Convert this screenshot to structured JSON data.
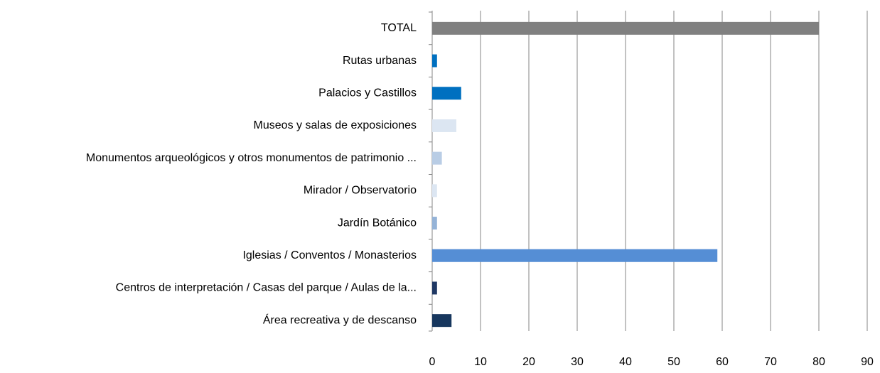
{
  "chart_data": {
    "type": "barh",
    "categories": [
      "TOTAL",
      "Rutas urbanas",
      "Palacios y Castillos",
      "Museos y salas de exposiciones",
      "Monumentos arqueológicos y otros monumentos  de patrimonio ...",
      "Mirador / Observatorio",
      "Jardín Botánico",
      "Iglesias / Conventos / Monasterios",
      "Centros de interpretación / Casas del parque / Aulas de la...",
      "Área recreativa y de descanso"
    ],
    "values": [
      80,
      1,
      6,
      5,
      2,
      1,
      1,
      59,
      1,
      4
    ],
    "colors": [
      "#808080",
      "#0070c0",
      "#0070c0",
      "#dce6f2",
      "#b9cde5",
      "#dce6f2",
      "#95b3d7",
      "#558ed5",
      "#1f3864",
      "#17375e"
    ],
    "xlim": [
      0,
      90
    ],
    "xticks": [
      0,
      10,
      20,
      30,
      40,
      50,
      60,
      70,
      80,
      90
    ],
    "grid": true
  }
}
